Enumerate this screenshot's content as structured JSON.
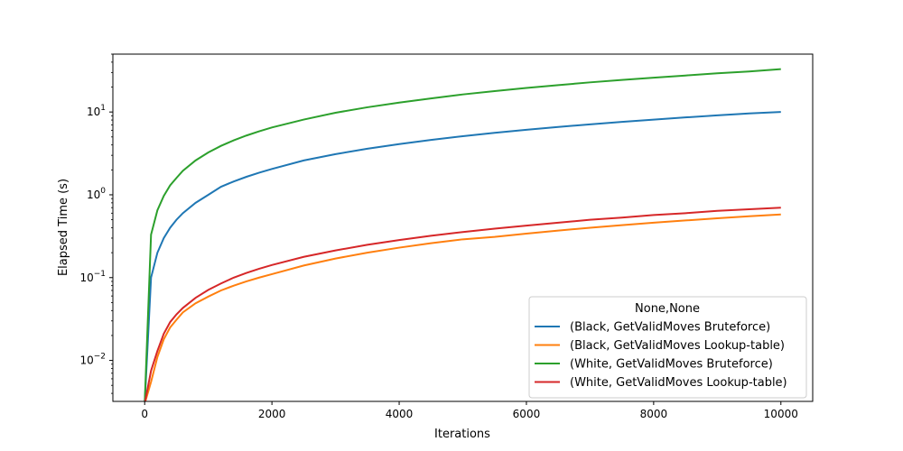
{
  "chart_data": {
    "type": "line",
    "xlabel": "Iterations",
    "ylabel": "Elapsed Time (s)",
    "xscale": "linear",
    "yscale": "log",
    "xlim": [
      -500,
      10500
    ],
    "ylim": [
      0.0032,
      50
    ],
    "x_ticks": [
      {
        "value": 0,
        "label": "0"
      },
      {
        "value": 2000,
        "label": "2000"
      },
      {
        "value": 4000,
        "label": "4000"
      },
      {
        "value": 6000,
        "label": "6000"
      },
      {
        "value": 8000,
        "label": "8000"
      },
      {
        "value": 10000,
        "label": "10000"
      }
    ],
    "y_ticks": [
      {
        "value": 0.01,
        "base": "10",
        "exp": "−2"
      },
      {
        "value": 0.1,
        "base": "10",
        "exp": "−1"
      },
      {
        "value": 1,
        "base": "10",
        "exp": "0"
      },
      {
        "value": 10,
        "base": "10",
        "exp": "1"
      }
    ],
    "grid": false,
    "legend": {
      "title": "None,None",
      "placement": "lower right"
    },
    "x": [
      0,
      100,
      200,
      300,
      400,
      500,
      600,
      800,
      1000,
      1200,
      1400,
      1600,
      1800,
      2000,
      2500,
      3000,
      3500,
      4000,
      4500,
      5000,
      5500,
      6000,
      6500,
      7000,
      7500,
      8000,
      8500,
      9000,
      9500,
      10000
    ],
    "series": [
      {
        "name": "(Black, GetValidMoves Bruteforce)",
        "color": "#1f77b4",
        "values": [
          0.003,
          0.1,
          0.2,
          0.3,
          0.4,
          0.5,
          0.6,
          0.8,
          1.0,
          1.25,
          1.45,
          1.65,
          1.85,
          2.05,
          2.6,
          3.1,
          3.6,
          4.1,
          4.6,
          5.1,
          5.6,
          6.1,
          6.6,
          7.1,
          7.6,
          8.1,
          8.6,
          9.1,
          9.6,
          10.0
        ]
      },
      {
        "name": "(Black, GetValidMoves Lookup-table)",
        "color": "#ff7f0e",
        "values": [
          0.003,
          0.0055,
          0.011,
          0.018,
          0.025,
          0.031,
          0.038,
          0.049,
          0.059,
          0.07,
          0.08,
          0.09,
          0.1,
          0.11,
          0.14,
          0.17,
          0.2,
          0.23,
          0.26,
          0.29,
          0.31,
          0.34,
          0.37,
          0.4,
          0.43,
          0.46,
          0.49,
          0.52,
          0.55,
          0.58
        ]
      },
      {
        "name": "(White, GetValidMoves Bruteforce)",
        "color": "#2ca02c",
        "values": [
          0.003,
          0.33,
          0.65,
          0.97,
          1.3,
          1.6,
          1.95,
          2.6,
          3.25,
          3.9,
          4.55,
          5.2,
          5.85,
          6.5,
          8.1,
          9.8,
          11.4,
          13.0,
          14.6,
          16.3,
          17.9,
          19.5,
          21.1,
          22.8,
          24.4,
          26.0,
          27.6,
          29.3,
          30.9,
          33.0
        ]
      },
      {
        "name": "(White, GetValidMoves Lookup-table)",
        "color": "#d62728",
        "values": [
          0.003,
          0.0075,
          0.013,
          0.021,
          0.029,
          0.036,
          0.043,
          0.057,
          0.071,
          0.085,
          0.1,
          0.114,
          0.128,
          0.142,
          0.178,
          0.213,
          0.249,
          0.284,
          0.32,
          0.355,
          0.39,
          0.425,
          0.46,
          0.5,
          0.53,
          0.57,
          0.6,
          0.64,
          0.67,
          0.7
        ]
      }
    ]
  }
}
